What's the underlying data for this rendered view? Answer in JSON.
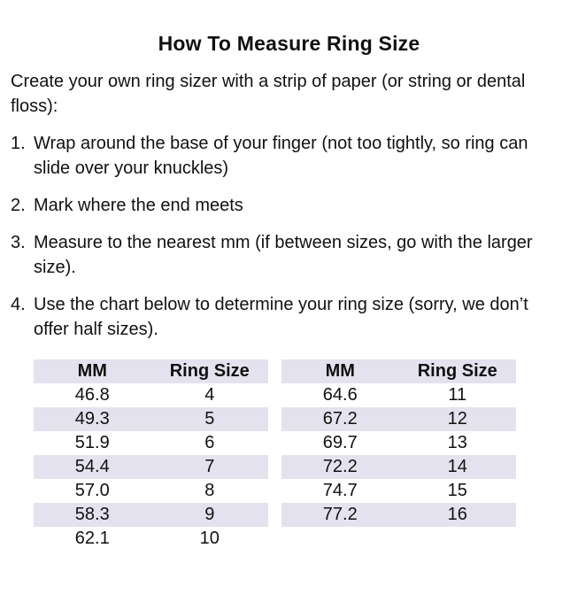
{
  "document": {
    "title": "How To Measure Ring Size",
    "intro": "Create your own ring sizer with a strip of paper (or string or dental floss):",
    "steps": [
      {
        "num": "1.",
        "text": "Wrap around the base of your finger (not too tightly, so ring can slide over your knuckles)"
      },
      {
        "num": "2.",
        "text": "Mark where the end meets"
      },
      {
        "num": "3.",
        "text": "Measure to the nearest mm (if between sizes, go with the larger size)."
      },
      {
        "num": "4.",
        "text": "Use the chart below to determine your ring size (sorry, we don’t offer half sizes)."
      }
    ]
  },
  "size_chart": {
    "headers": [
      "MM",
      "Ring Size"
    ],
    "left_table": [
      [
        "46.8",
        "4"
      ],
      [
        "49.3",
        "5"
      ],
      [
        "51.9",
        "6"
      ],
      [
        "54.4",
        "7"
      ],
      [
        "57.0",
        "8"
      ],
      [
        "58.3",
        "9"
      ],
      [
        "62.1",
        "10"
      ]
    ],
    "right_table": [
      [
        "64.6",
        "11"
      ],
      [
        "67.2",
        "12"
      ],
      [
        "69.7",
        "13"
      ],
      [
        "72.2",
        "14"
      ],
      [
        "74.7",
        "15"
      ],
      [
        "77.2",
        "16"
      ]
    ]
  },
  "colors": {
    "row_shade": "#e4e2ee",
    "text": "#111111",
    "background": "#ffffff"
  }
}
